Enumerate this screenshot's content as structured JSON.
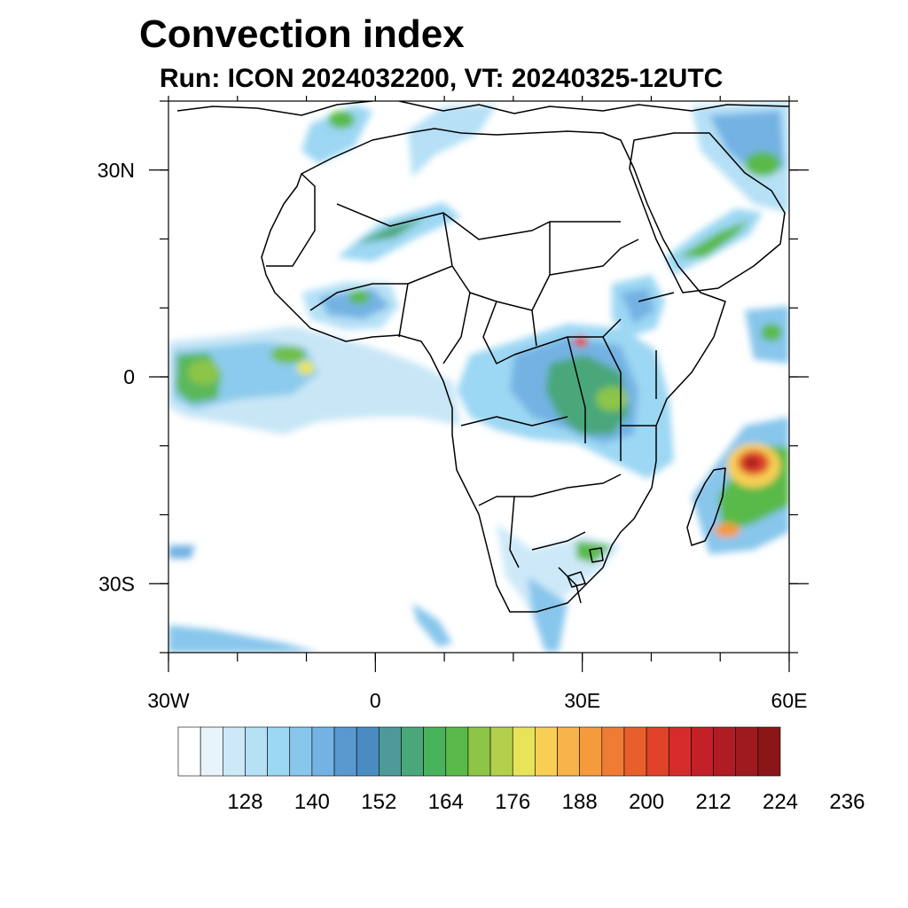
{
  "title": "Convection index",
  "subtitle": "Run: ICON 2024032200,  VT: 20240325-12UTC",
  "map": {
    "region": "Africa",
    "lon_range": [
      -30,
      60
    ],
    "lat_range": [
      -40,
      40
    ],
    "x_ticks": [
      {
        "lon": -30,
        "label": "30W"
      },
      {
        "lon": 0,
        "label": "0"
      },
      {
        "lon": 30,
        "label": "30E"
      },
      {
        "lon": 60,
        "label": "60E"
      }
    ],
    "y_ticks": [
      {
        "lat": 30,
        "label": "30N"
      },
      {
        "lat": 0,
        "label": "0"
      },
      {
        "lat": -30,
        "label": "30S"
      }
    ]
  },
  "colorbar": {
    "colors": [
      "#ffffff",
      "#e8f4fc",
      "#cde9f8",
      "#b5e0f6",
      "#9cd7f3",
      "#88c6ec",
      "#73b2e3",
      "#5a98d0",
      "#4a8bc0",
      "#4d9a99",
      "#4aa77a",
      "#49b25c",
      "#5aba49",
      "#8cc547",
      "#b2d04b",
      "#e8e45a",
      "#f7cf55",
      "#f8b34a",
      "#f59a3d",
      "#ef7b35",
      "#e85f2c",
      "#e0432a",
      "#d72c2c",
      "#c42028",
      "#b01c24",
      "#9e1a1f",
      "#8a1619"
    ],
    "labels": [
      "128",
      "140",
      "152",
      "164",
      "176",
      "188",
      "200",
      "212",
      "224",
      "236"
    ]
  }
}
